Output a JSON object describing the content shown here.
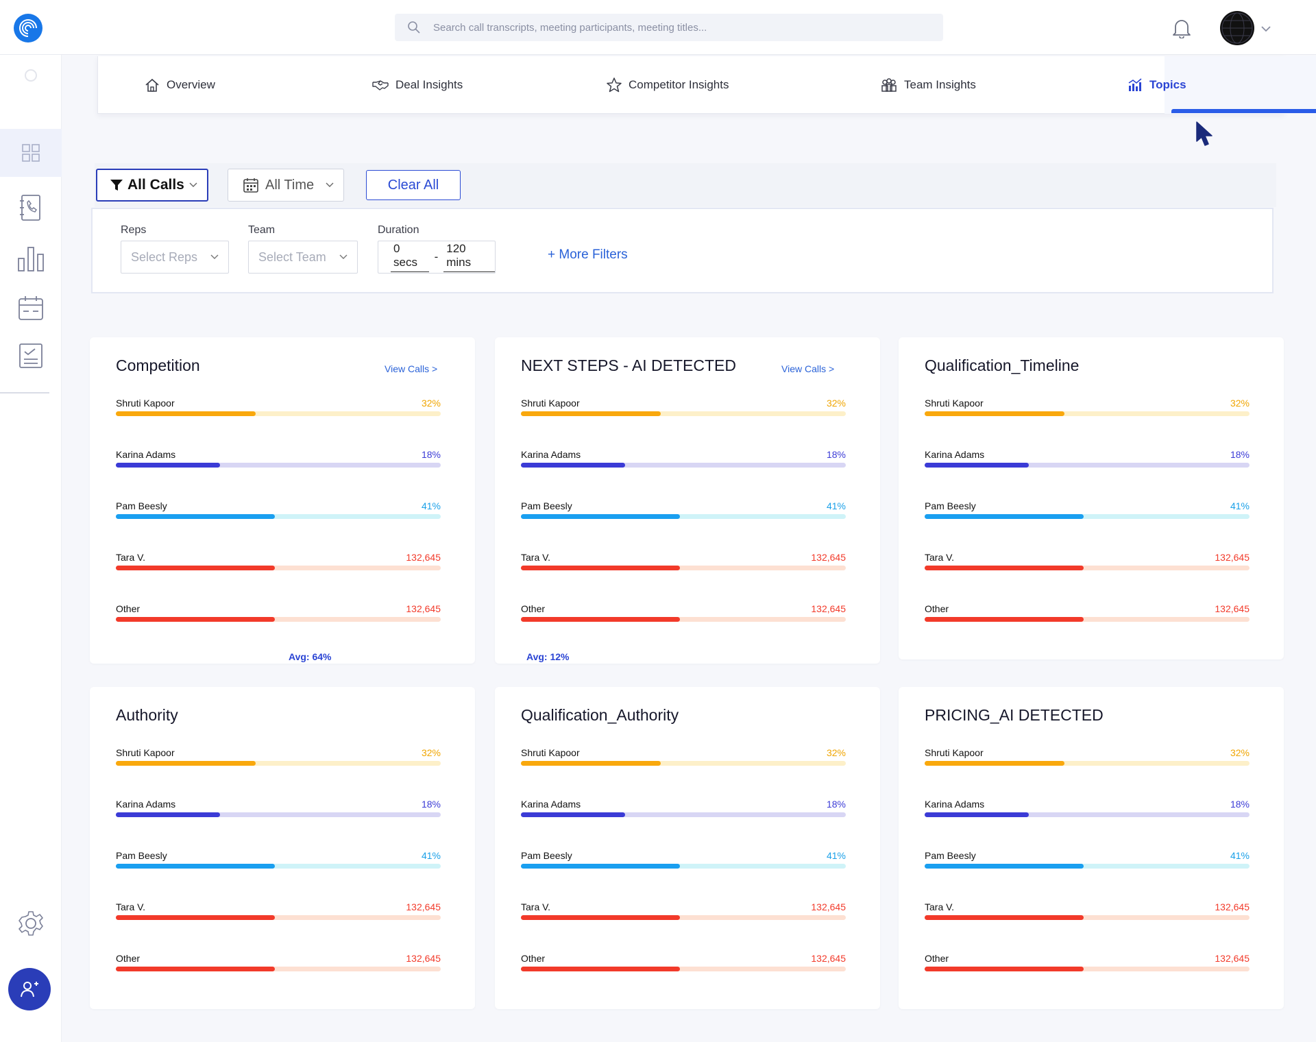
{
  "header": {
    "search_placeholder": "Search call transcripts, meeting participants, meeting titles..."
  },
  "tabs": [
    {
      "label": "Overview",
      "icon": "home-icon"
    },
    {
      "label": "Deal Insights",
      "icon": "handshake-icon"
    },
    {
      "label": "Competitor Insights",
      "icon": "star-icon"
    },
    {
      "label": "Team Insights",
      "icon": "team-icon"
    },
    {
      "label": "Topics",
      "icon": "bar-chart-icon",
      "active": true
    }
  ],
  "filters": {
    "all_calls": "All Calls",
    "all_time": "All Time",
    "clear_all": "Clear All",
    "reps_label": "Reps",
    "reps_placeholder": "Select Reps",
    "team_label": "Team",
    "team_placeholder": "Select Team",
    "duration_label": "Duration",
    "duration_from": "0 secs",
    "duration_sep": "-",
    "duration_to": "120 mins",
    "more_filters": "+ More Filters"
  },
  "colors": {
    "orange": "#f9a80d",
    "orange_track": "#fdf0c9",
    "purple": "#3b3bd6",
    "purple_track": "#d8d6f4",
    "blue": "#1a9ff0",
    "blue_track": "#cff3f8",
    "red": "#f23a2a",
    "red_track": "#fde0d2",
    "orange_text": "#f0a500",
    "purple_text": "#3b3bd6",
    "blue_text": "#1aa0e8",
    "red_text": "#f23a2a"
  },
  "cards": [
    {
      "title": "Competition",
      "view_calls": "View Calls >",
      "avg": "Avg: 64%",
      "rows": [
        {
          "name": "Shruti Kapoor",
          "value": "32%",
          "fill": 0.43,
          "color": "orange"
        },
        {
          "name": "Karina Adams",
          "value": "18%",
          "fill": 0.32,
          "color": "purple"
        },
        {
          "name": "Pam Beesly",
          "value": "41%",
          "fill": 0.49,
          "color": "blue"
        },
        {
          "name": "Tara V.",
          "value": "132,645",
          "fill": 0.49,
          "color": "red"
        },
        {
          "name": "Other",
          "value": "132,645",
          "fill": 0.49,
          "color": "red"
        }
      ]
    },
    {
      "title": "NEXT STEPS - AI DETECTED",
      "view_calls": "View Calls >",
      "avg": "Avg: 12%",
      "rows": [
        {
          "name": "Shruti Kapoor",
          "value": "32%",
          "fill": 0.43,
          "color": "orange"
        },
        {
          "name": "Karina Adams",
          "value": "18%",
          "fill": 0.32,
          "color": "purple"
        },
        {
          "name": "Pam Beesly",
          "value": "41%",
          "fill": 0.49,
          "color": "blue"
        },
        {
          "name": "Tara V.",
          "value": "132,645",
          "fill": 0.49,
          "color": "red"
        },
        {
          "name": "Other",
          "value": "132,645",
          "fill": 0.49,
          "color": "red"
        }
      ]
    },
    {
      "title": "Qualification_Timeline",
      "rows": [
        {
          "name": "Shruti Kapoor",
          "value": "32%",
          "fill": 0.43,
          "color": "orange"
        },
        {
          "name": "Karina Adams",
          "value": "18%",
          "fill": 0.32,
          "color": "purple"
        },
        {
          "name": "Pam Beesly",
          "value": "41%",
          "fill": 0.49,
          "color": "blue"
        },
        {
          "name": "Tara V.",
          "value": "132,645",
          "fill": 0.49,
          "color": "red"
        },
        {
          "name": "Other",
          "value": "132,645",
          "fill": 0.49,
          "color": "red"
        }
      ]
    },
    {
      "title": "Authority",
      "rows": [
        {
          "name": "Shruti Kapoor",
          "value": "32%",
          "fill": 0.43,
          "color": "orange"
        },
        {
          "name": "Karina Adams",
          "value": "18%",
          "fill": 0.32,
          "color": "purple"
        },
        {
          "name": "Pam Beesly",
          "value": "41%",
          "fill": 0.49,
          "color": "blue"
        },
        {
          "name": "Tara V.",
          "value": "132,645",
          "fill": 0.49,
          "color": "red"
        },
        {
          "name": "Other",
          "value": "132,645",
          "fill": 0.49,
          "color": "red"
        }
      ]
    },
    {
      "title": "Qualification_Authority",
      "rows": [
        {
          "name": "Shruti Kapoor",
          "value": "32%",
          "fill": 0.43,
          "color": "orange"
        },
        {
          "name": "Karina Adams",
          "value": "18%",
          "fill": 0.32,
          "color": "purple"
        },
        {
          "name": "Pam Beesly",
          "value": "41%",
          "fill": 0.49,
          "color": "blue"
        },
        {
          "name": "Tara V.",
          "value": "132,645",
          "fill": 0.49,
          "color": "red"
        },
        {
          "name": "Other",
          "value": "132,645",
          "fill": 0.49,
          "color": "red"
        }
      ]
    },
    {
      "title": "PRICING_AI DETECTED",
      "rows": [
        {
          "name": "Shruti Kapoor",
          "value": "32%",
          "fill": 0.43,
          "color": "orange"
        },
        {
          "name": "Karina Adams",
          "value": "18%",
          "fill": 0.32,
          "color": "purple"
        },
        {
          "name": "Pam Beesly",
          "value": "41%",
          "fill": 0.49,
          "color": "blue"
        },
        {
          "name": "Tara V.",
          "value": "132,645",
          "fill": 0.49,
          "color": "red"
        },
        {
          "name": "Other",
          "value": "132,645",
          "fill": 0.49,
          "color": "red"
        }
      ]
    }
  ]
}
